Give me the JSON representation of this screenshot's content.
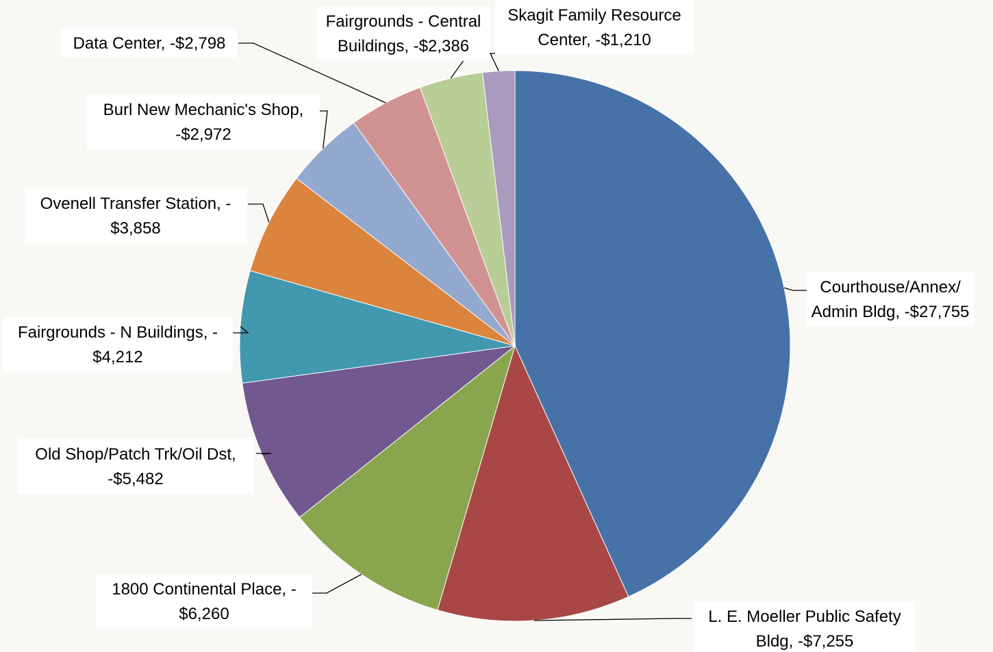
{
  "chart_data": {
    "type": "pie",
    "start": "12 o'clock",
    "direction": "clockwise",
    "slices": [
      {
        "label_lines": [
          "Courthouse/Annex/",
          "Admin Bldg, -$27,755"
        ],
        "value": -27755,
        "color": "#4672a8"
      },
      {
        "label_lines": [
          "L. E. Moeller Public Safety",
          "Bldg, -$7,255"
        ],
        "value": -7255,
        "color": "#a84745"
      },
      {
        "label_lines": [
          "1800 Continental Place, -",
          "$6,260"
        ],
        "value": -6260,
        "color": "#89a54e"
      },
      {
        "label_lines": [
          "Old Shop/Patch Trk/Oil Dst,",
          "-$5,482"
        ],
        "value": -5482,
        "color": "#71588f"
      },
      {
        "label_lines": [
          "Fairgrounds - N Buildings, -",
          "$4,212"
        ],
        "value": -4212,
        "color": "#4198af"
      },
      {
        "label_lines": [
          "Ovenell Transfer Station, -",
          "$3,858"
        ],
        "value": -3858,
        "color": "#db843d"
      },
      {
        "label_lines": [
          "Burl New Mechanic's Shop,",
          "-$2,972"
        ],
        "value": -2972,
        "color": "#93a9cf"
      },
      {
        "label_lines": [
          "Data Center, -$2,798"
        ],
        "value": -2798,
        "color": "#d19392"
      },
      {
        "label_lines": [
          "Fairgrounds - Central",
          "Buildings, -$2,386"
        ],
        "value": -2386,
        "color": "#b9cd96"
      },
      {
        "label_lines": [
          "Skagit Family Resource",
          "Center, -$1,210"
        ],
        "value": -1210,
        "color": "#a99bbd"
      }
    ]
  }
}
